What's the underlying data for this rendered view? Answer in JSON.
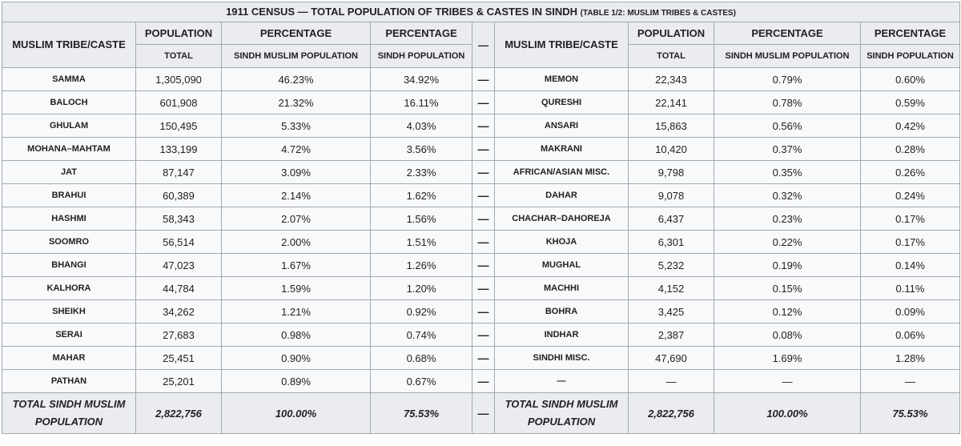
{
  "caption": {
    "title": "1911 CENSUS — TOTAL POPULATION OF TRIBES & CASTES IN SINDH",
    "subtitle": "(TABLE 1/2: MUSLIM TRIBES & CASTES)"
  },
  "headers": {
    "tribe_caste": "MUSLIM TRIBE/CASTE",
    "population": "POPULATION",
    "percentage": "PERCENTAGE",
    "total": "TOTAL",
    "sindh_muslim_population": "SINDH MUSLIM POPULATION",
    "sindh_population": "SINDH POPULATION",
    "separator": "—"
  },
  "rows": [
    {
      "left": {
        "name": "SAMMA",
        "total": "1,305,090",
        "pct_muslim": "46.23%",
        "pct_sindh": "34.92%"
      },
      "sep": "—",
      "right": {
        "name": "MEMON",
        "total": "22,343",
        "pct_muslim": "0.79%",
        "pct_sindh": "0.60%"
      }
    },
    {
      "left": {
        "name": "BALOCH",
        "total": "601,908",
        "pct_muslim": "21.32%",
        "pct_sindh": "16.11%"
      },
      "sep": "—",
      "right": {
        "name": "QURESHI",
        "total": "22,141",
        "pct_muslim": "0.78%",
        "pct_sindh": "0.59%"
      }
    },
    {
      "left": {
        "name": "GHULAM",
        "total": "150,495",
        "pct_muslim": "5.33%",
        "pct_sindh": "4.03%"
      },
      "sep": "—",
      "right": {
        "name": "ANSARI",
        "total": "15,863",
        "pct_muslim": "0.56%",
        "pct_sindh": "0.42%"
      }
    },
    {
      "left": {
        "name": "MOHANA–MAHTAM",
        "total": "133,199",
        "pct_muslim": "4.72%",
        "pct_sindh": "3.56%"
      },
      "sep": "—",
      "right": {
        "name": "MAKRANI",
        "total": "10,420",
        "pct_muslim": "0.37%",
        "pct_sindh": "0.28%"
      }
    },
    {
      "left": {
        "name": "JAT",
        "total": "87,147",
        "pct_muslim": "3.09%",
        "pct_sindh": "2.33%"
      },
      "sep": "—",
      "right": {
        "name": "AFRICAN/ASIAN MISC.",
        "total": "9,798",
        "pct_muslim": "0.35%",
        "pct_sindh": "0.26%"
      }
    },
    {
      "left": {
        "name": "BRAHUI",
        "total": "60,389",
        "pct_muslim": "2.14%",
        "pct_sindh": "1.62%"
      },
      "sep": "—",
      "right": {
        "name": "DAHAR",
        "total": "9,078",
        "pct_muslim": "0.32%",
        "pct_sindh": "0.24%"
      }
    },
    {
      "left": {
        "name": "HASHMI",
        "total": "58,343",
        "pct_muslim": "2.07%",
        "pct_sindh": "1.56%"
      },
      "sep": "—",
      "right": {
        "name": "CHACHAR–DAHOREJA",
        "total": "6,437",
        "pct_muslim": "0.23%",
        "pct_sindh": "0.17%"
      }
    },
    {
      "left": {
        "name": "SOOMRO",
        "total": "56,514",
        "pct_muslim": "2.00%",
        "pct_sindh": "1.51%"
      },
      "sep": "—",
      "right": {
        "name": "KHOJA",
        "total": "6,301",
        "pct_muslim": "0.22%",
        "pct_sindh": "0.17%"
      }
    },
    {
      "left": {
        "name": "BHANGI",
        "total": "47,023",
        "pct_muslim": "1.67%",
        "pct_sindh": "1.26%"
      },
      "sep": "—",
      "right": {
        "name": "MUGHAL",
        "total": "5,232",
        "pct_muslim": "0.19%",
        "pct_sindh": "0.14%"
      }
    },
    {
      "left": {
        "name": "KALHORA",
        "total": "44,784",
        "pct_muslim": "1.59%",
        "pct_sindh": "1.20%"
      },
      "sep": "—",
      "right": {
        "name": "MACHHI",
        "total": "4,152",
        "pct_muslim": "0.15%",
        "pct_sindh": "0.11%"
      }
    },
    {
      "left": {
        "name": "SHEIKH",
        "total": "34,262",
        "pct_muslim": "1.21%",
        "pct_sindh": "0.92%"
      },
      "sep": "—",
      "right": {
        "name": "BOHRA",
        "total": "3,425",
        "pct_muslim": "0.12%",
        "pct_sindh": "0.09%"
      }
    },
    {
      "left": {
        "name": "SERAI",
        "total": "27,683",
        "pct_muslim": "0.98%",
        "pct_sindh": "0.74%"
      },
      "sep": "—",
      "right": {
        "name": "INDHAR",
        "total": "2,387",
        "pct_muslim": "0.08%",
        "pct_sindh": "0.06%"
      }
    },
    {
      "left": {
        "name": "MAHAR",
        "total": "25,451",
        "pct_muslim": "0.90%",
        "pct_sindh": "0.68%"
      },
      "sep": "—",
      "right": {
        "name": "SINDHI MISC.",
        "total": "47,690",
        "pct_muslim": "1.69%",
        "pct_sindh": "1.28%"
      }
    },
    {
      "left": {
        "name": "PATHAN",
        "total": "25,201",
        "pct_muslim": "0.89%",
        "pct_sindh": "0.67%"
      },
      "sep": "—",
      "right": {
        "name": "—",
        "total": "—",
        "pct_muslim": "—",
        "pct_sindh": "—"
      }
    }
  ],
  "totals": {
    "left": {
      "name": "TOTAL SINDH MUSLIM POPULATION",
      "total": "2,822,756",
      "pct_muslim": "100.00%",
      "pct_sindh": "75.53%"
    },
    "sep": "—",
    "right": {
      "name": "TOTAL SINDH MUSLIM POPULATION",
      "total": "2,822,756",
      "pct_muslim": "100.00%",
      "pct_sindh": "75.53%"
    }
  }
}
